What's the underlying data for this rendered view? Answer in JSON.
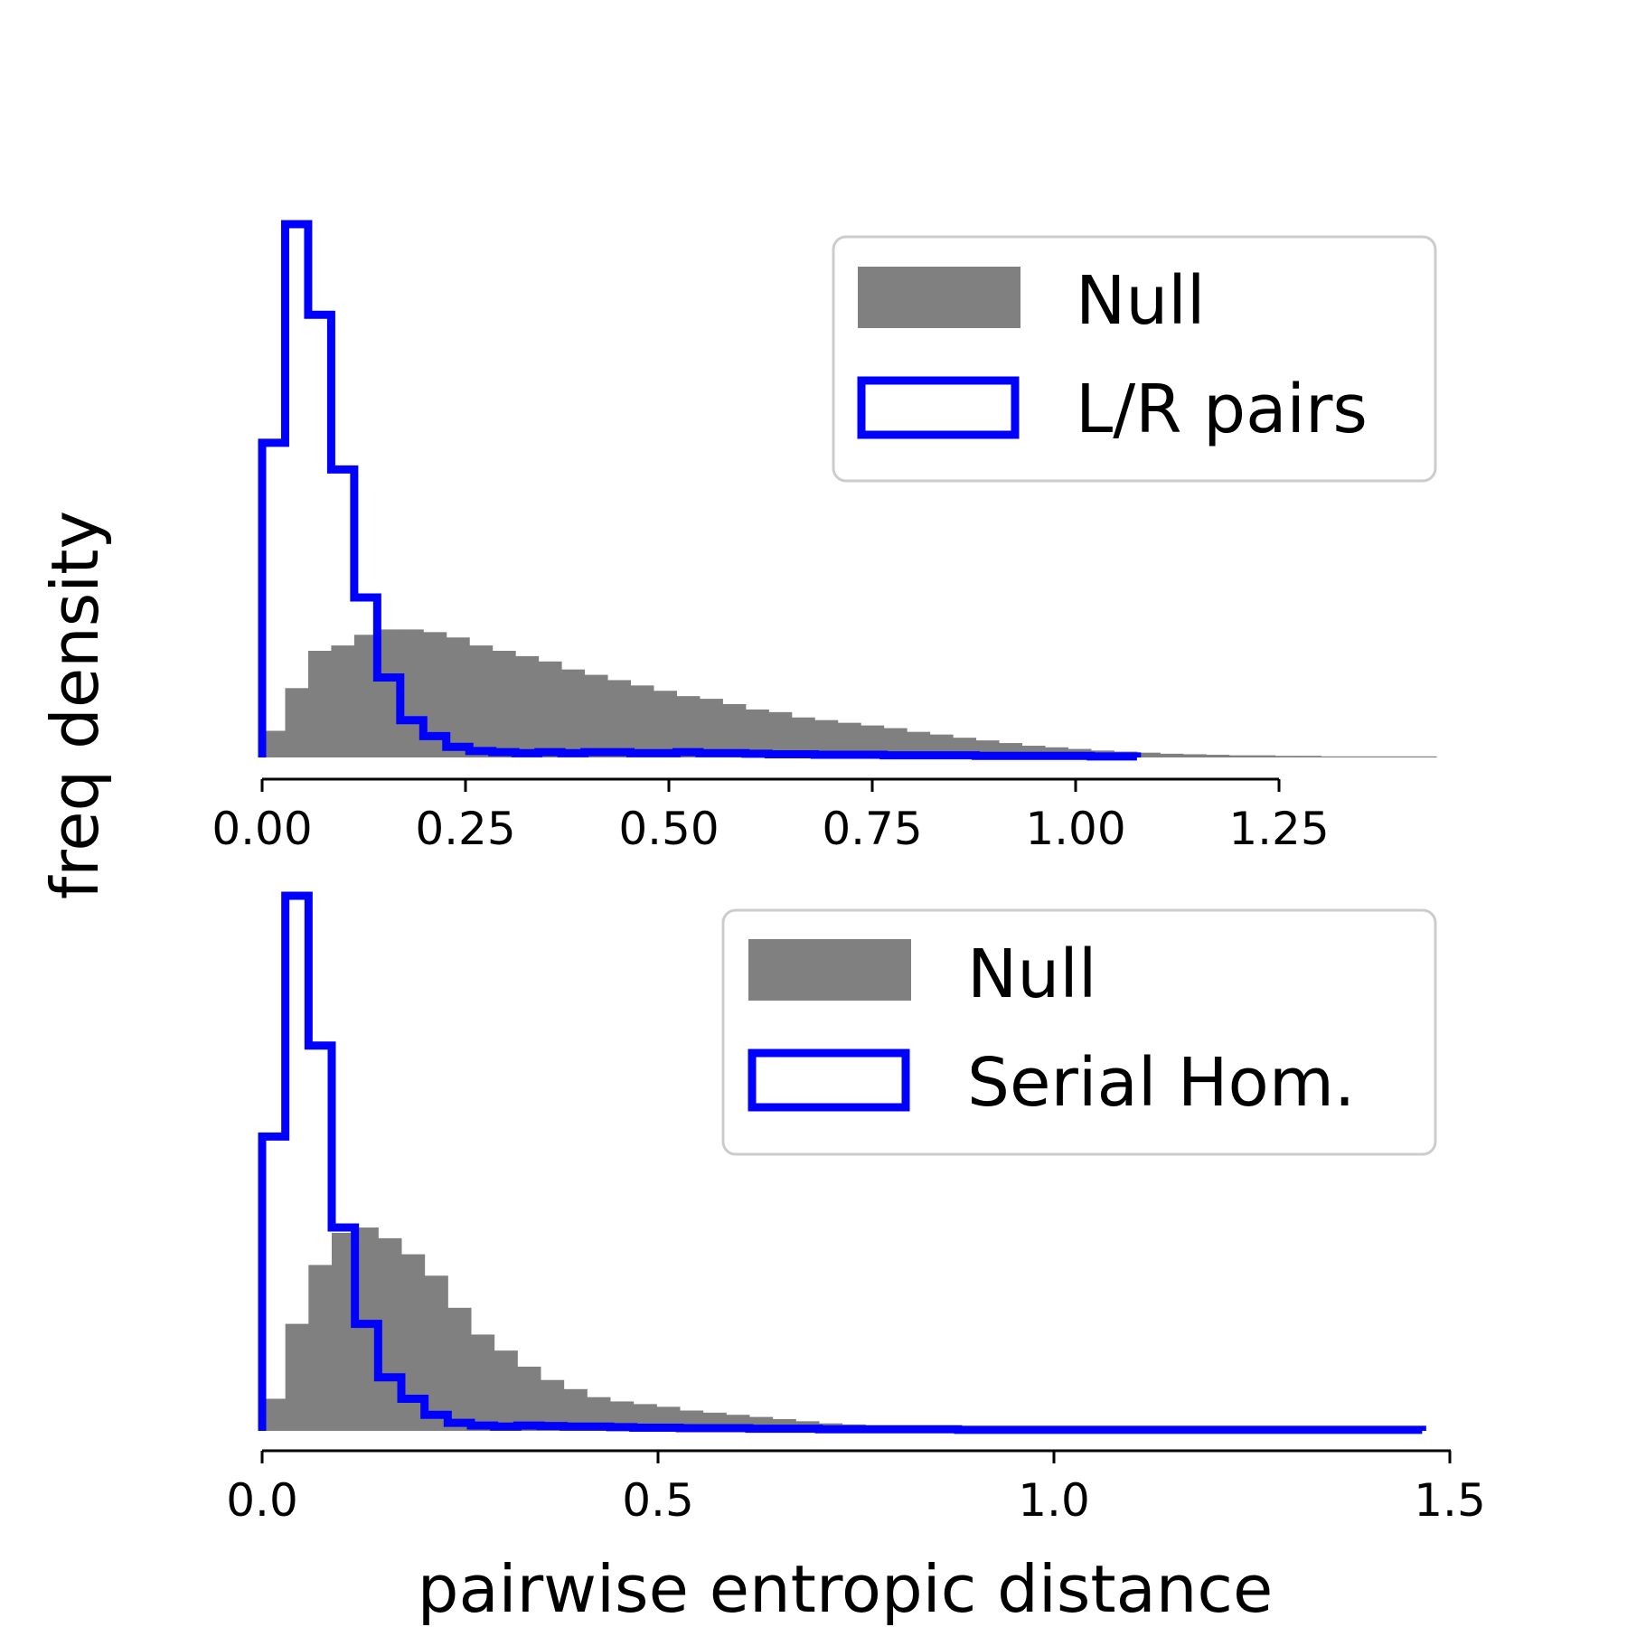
{
  "figure": {
    "ylabel": "freq density",
    "xlabel": "pairwise entropic distance"
  },
  "colors": {
    "null_fill": "#808080",
    "pair_line": "#0000ff",
    "axis": "#000000",
    "legend_border": "#cccccc"
  },
  "chart_data": [
    {
      "type": "histogram",
      "panel": "top",
      "xlim": [
        0,
        1.45
      ],
      "ylim": [
        0,
        1.0
      ],
      "y_ticks_shown": false,
      "grid": false,
      "legend_position": "upper right",
      "xticks": [
        0.0,
        0.25,
        0.5,
        0.75,
        1.0,
        1.25
      ],
      "xtick_labels": [
        "0.00",
        "0.25",
        "0.50",
        "0.75",
        "1.00",
        "1.25"
      ],
      "legend": [
        "Null",
        "L/R pairs"
      ],
      "series": [
        {
          "name": "Null",
          "style": "filled",
          "bin_start": 0.0,
          "bin_width": 0.0283,
          "values": [
            0.05,
            0.13,
            0.2,
            0.21,
            0.23,
            0.24,
            0.24,
            0.235,
            0.225,
            0.21,
            0.2,
            0.19,
            0.18,
            0.165,
            0.155,
            0.145,
            0.135,
            0.125,
            0.115,
            0.11,
            0.1,
            0.09,
            0.085,
            0.075,
            0.07,
            0.065,
            0.06,
            0.055,
            0.048,
            0.043,
            0.037,
            0.032,
            0.027,
            0.022,
            0.019,
            0.016,
            0.013,
            0.011,
            0.009,
            0.007,
            0.006,
            0.005,
            0.004,
            0.004,
            0.003,
            0.003,
            0.002,
            0.002,
            0.002,
            0.002,
            0.002
          ]
        },
        {
          "name": "L/R pairs",
          "style": "step",
          "bin_start": 0.0,
          "bin_width": 0.0283,
          "values": [
            0.59,
            1.0,
            0.83,
            0.54,
            0.3,
            0.15,
            0.07,
            0.04,
            0.02,
            0.012,
            0.01,
            0.008,
            0.01,
            0.008,
            0.01,
            0.01,
            0.008,
            0.008,
            0.01,
            0.008,
            0.008,
            0.007,
            0.006,
            0.006,
            0.005,
            0.005,
            0.005,
            0.004,
            0.004,
            0.004,
            0.004,
            0.003,
            0.003,
            0.003,
            0.003,
            0.003,
            0.002,
            0.002
          ]
        }
      ]
    },
    {
      "type": "histogram",
      "panel": "bottom",
      "xlim": [
        0,
        1.5
      ],
      "ylim": [
        0,
        1.0
      ],
      "y_ticks_shown": false,
      "grid": false,
      "legend_position": "upper right",
      "xticks": [
        0.0,
        0.5,
        1.0,
        1.5
      ],
      "xtick_labels": [
        "0.0",
        "0.5",
        "1.0",
        "1.5"
      ],
      "legend": [
        "Null",
        "Serial Hom."
      ],
      "series": [
        {
          "name": "Null",
          "style": "filled",
          "bin_start": 0.0,
          "bin_width": 0.0293,
          "values": [
            0.06,
            0.2,
            0.31,
            0.37,
            0.38,
            0.36,
            0.33,
            0.29,
            0.23,
            0.18,
            0.15,
            0.12,
            0.095,
            0.078,
            0.063,
            0.055,
            0.05,
            0.045,
            0.038,
            0.034,
            0.03,
            0.026,
            0.022,
            0.018,
            0.014,
            0.012,
            0.01,
            0.008,
            0.007,
            0.006,
            0.005,
            0.004,
            0.004,
            0.003,
            0.003,
            0.003,
            0.003,
            0.002,
            0.002,
            0.002,
            0.002,
            0.002,
            0.002,
            0.001,
            0.001,
            0.001,
            0.001,
            0.001,
            0.001,
            0.001
          ]
        },
        {
          "name": "Serial Hom.",
          "style": "step",
          "bin_start": 0.0,
          "bin_width": 0.0293,
          "values": [
            0.55,
            1.0,
            0.72,
            0.38,
            0.2,
            0.1,
            0.06,
            0.03,
            0.015,
            0.01,
            0.008,
            0.01,
            0.009,
            0.008,
            0.008,
            0.007,
            0.006,
            0.006,
            0.005,
            0.005,
            0.005,
            0.004,
            0.004,
            0.004,
            0.003,
            0.003,
            0.003,
            0.003,
            0.003,
            0.003,
            0.002,
            0.002,
            0.002,
            0.002,
            0.002,
            0.002,
            0.002,
            0.002,
            0.002,
            0.002,
            0.002,
            0.002,
            0.002,
            0.002,
            0.002,
            0.002,
            0.002,
            0.002,
            0.002,
            0.002
          ]
        }
      ]
    }
  ]
}
